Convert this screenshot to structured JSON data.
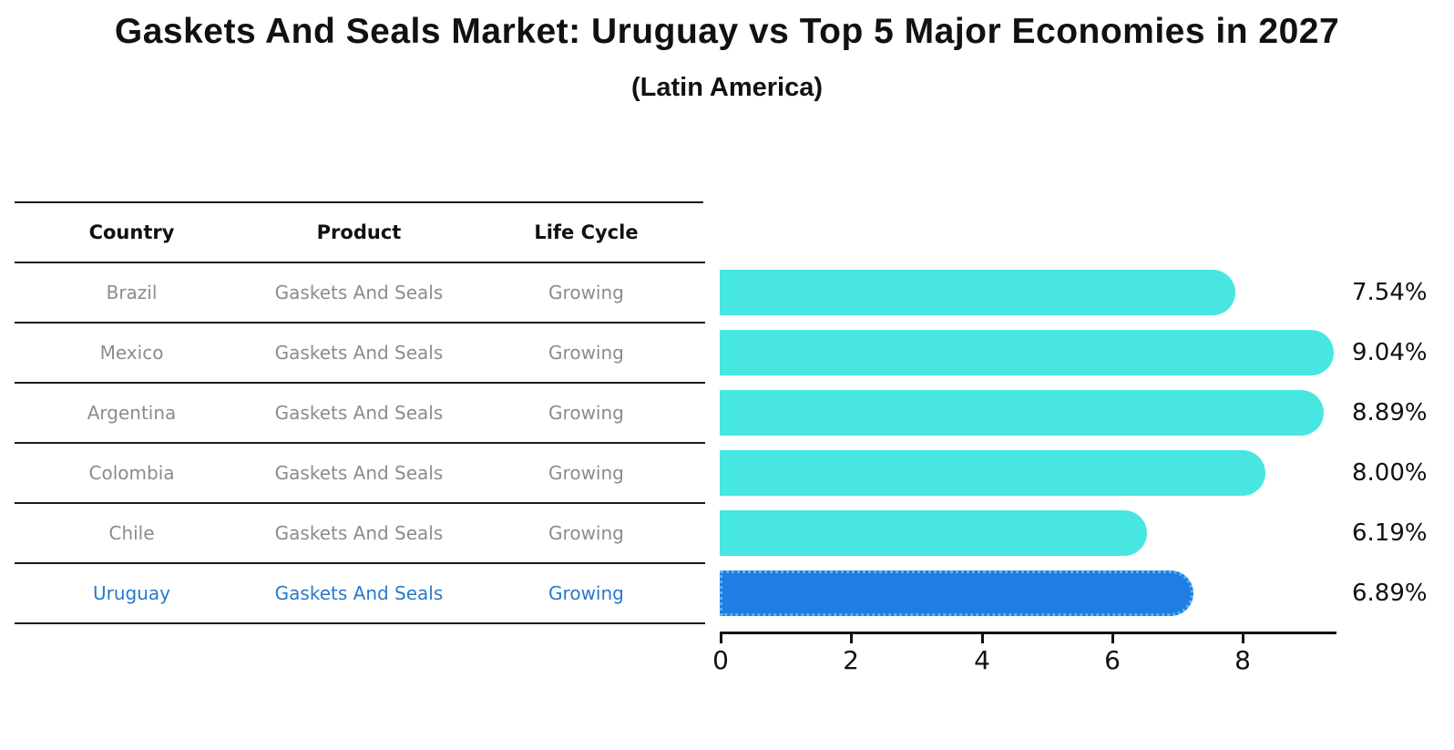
{
  "header": {
    "title": "Gaskets And Seals Market: Uruguay vs Top 5 Major Economies in 2027",
    "subtitle": "(Latin America)"
  },
  "table": {
    "columns": [
      "Country",
      "Product",
      "Life Cycle"
    ],
    "rows": [
      {
        "country": "Brazil",
        "product": "Gaskets And Seals",
        "life_cycle": "Growing",
        "highlight": false
      },
      {
        "country": "Mexico",
        "product": "Gaskets And Seals",
        "life_cycle": "Growing",
        "highlight": false
      },
      {
        "country": "Argentina",
        "product": "Gaskets And Seals",
        "life_cycle": "Growing",
        "highlight": false
      },
      {
        "country": "Colombia",
        "product": "Gaskets And Seals",
        "life_cycle": "Growing",
        "highlight": false
      },
      {
        "country": "Chile",
        "product": "Gaskets And Seals",
        "life_cycle": "Growing",
        "highlight": true
      }
    ]
  },
  "chart_data": {
    "type": "bar",
    "orientation": "horizontal",
    "title": "Gaskets And Seals Market: Uruguay vs Top 5 Major Economies in 2027 (Latin America)",
    "categories": [
      "Brazil",
      "Mexico",
      "Argentina",
      "Colombia",
      "Chile",
      "Uruguay"
    ],
    "values": [
      7.54,
      9.04,
      8.89,
      8.0,
      6.19,
      6.89
    ],
    "value_labels": [
      "7.54%",
      "9.04%",
      "8.89%",
      "8.00%",
      "6.19%",
      "6.89%"
    ],
    "highlight_index": 5,
    "x_ticks": [
      0,
      2,
      4,
      6,
      8
    ],
    "xlim": [
      0,
      9.45
    ],
    "xlabel": "",
    "ylabel": "",
    "grid": false,
    "legend": false,
    "bar_color": "#48e6e1",
    "highlight_bar_color": "#1f7de4",
    "highlight_border_color": "#55b8f0"
  },
  "colors": {
    "text_primary": "#111111",
    "text_muted": "#8c8c8c",
    "text_highlight": "#2979c9",
    "rule": "#1a1a1a"
  }
}
